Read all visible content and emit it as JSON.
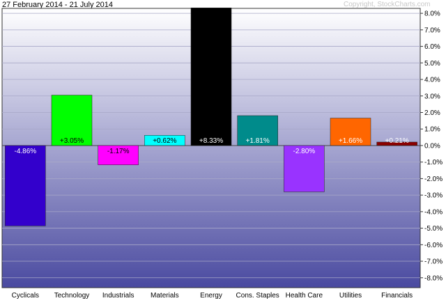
{
  "header": {
    "date_range": "27 February 2014 - 21 July 2014",
    "copyright": "Copyright, StockCharts.com"
  },
  "chart_data": {
    "type": "bar",
    "categories": [
      "Cyclicals",
      "Technology",
      "Industrials",
      "Materials",
      "Energy",
      "Cons. Staples",
      "Health Care",
      "Utilities",
      "Financials"
    ],
    "values": [
      -4.86,
      3.05,
      -1.17,
      0.62,
      8.33,
      1.81,
      -2.8,
      1.66,
      0.21
    ],
    "data_labels": [
      "-4.86%",
      "+3.05%",
      "-1.17%",
      "+0.62%",
      "+8.33%",
      "+1.81%",
      "-2.80%",
      "+1.66%",
      "+0.21%"
    ],
    "colors": [
      "#3300cc",
      "#00ff00",
      "#ff00ff",
      "#00ffff",
      "#000000",
      "#008b8b",
      "#9933ff",
      "#ff6600",
      "#8b0000"
    ],
    "label_colors": [
      "#ffffff",
      "#000000",
      "#000000",
      "#000000",
      "#ffffff",
      "#ffffff",
      "#ffffff",
      "#ffffff",
      "#ffffff"
    ],
    "ylim": [
      -8.6,
      8.3
    ],
    "yticks": [
      8,
      7,
      6,
      5,
      4,
      3,
      2,
      1,
      0,
      -1,
      -2,
      -3,
      -4,
      -5,
      -6,
      -7,
      -8
    ],
    "ytick_labels": [
      "8.0%",
      "7.0%",
      "6.0%",
      "5.0%",
      "4.0%",
      "3.0%",
      "2.0%",
      "1.0%",
      "0.0%",
      "-1.0%",
      "-2.0%",
      "-3.0%",
      "-4.0%",
      "-5.0%",
      "-6.0%",
      "-7.0%",
      "-8.0%"
    ],
    "grid": true,
    "y_axis_position": "right",
    "background_gradient": [
      "#ffffff",
      "#4a4aa0"
    ]
  }
}
